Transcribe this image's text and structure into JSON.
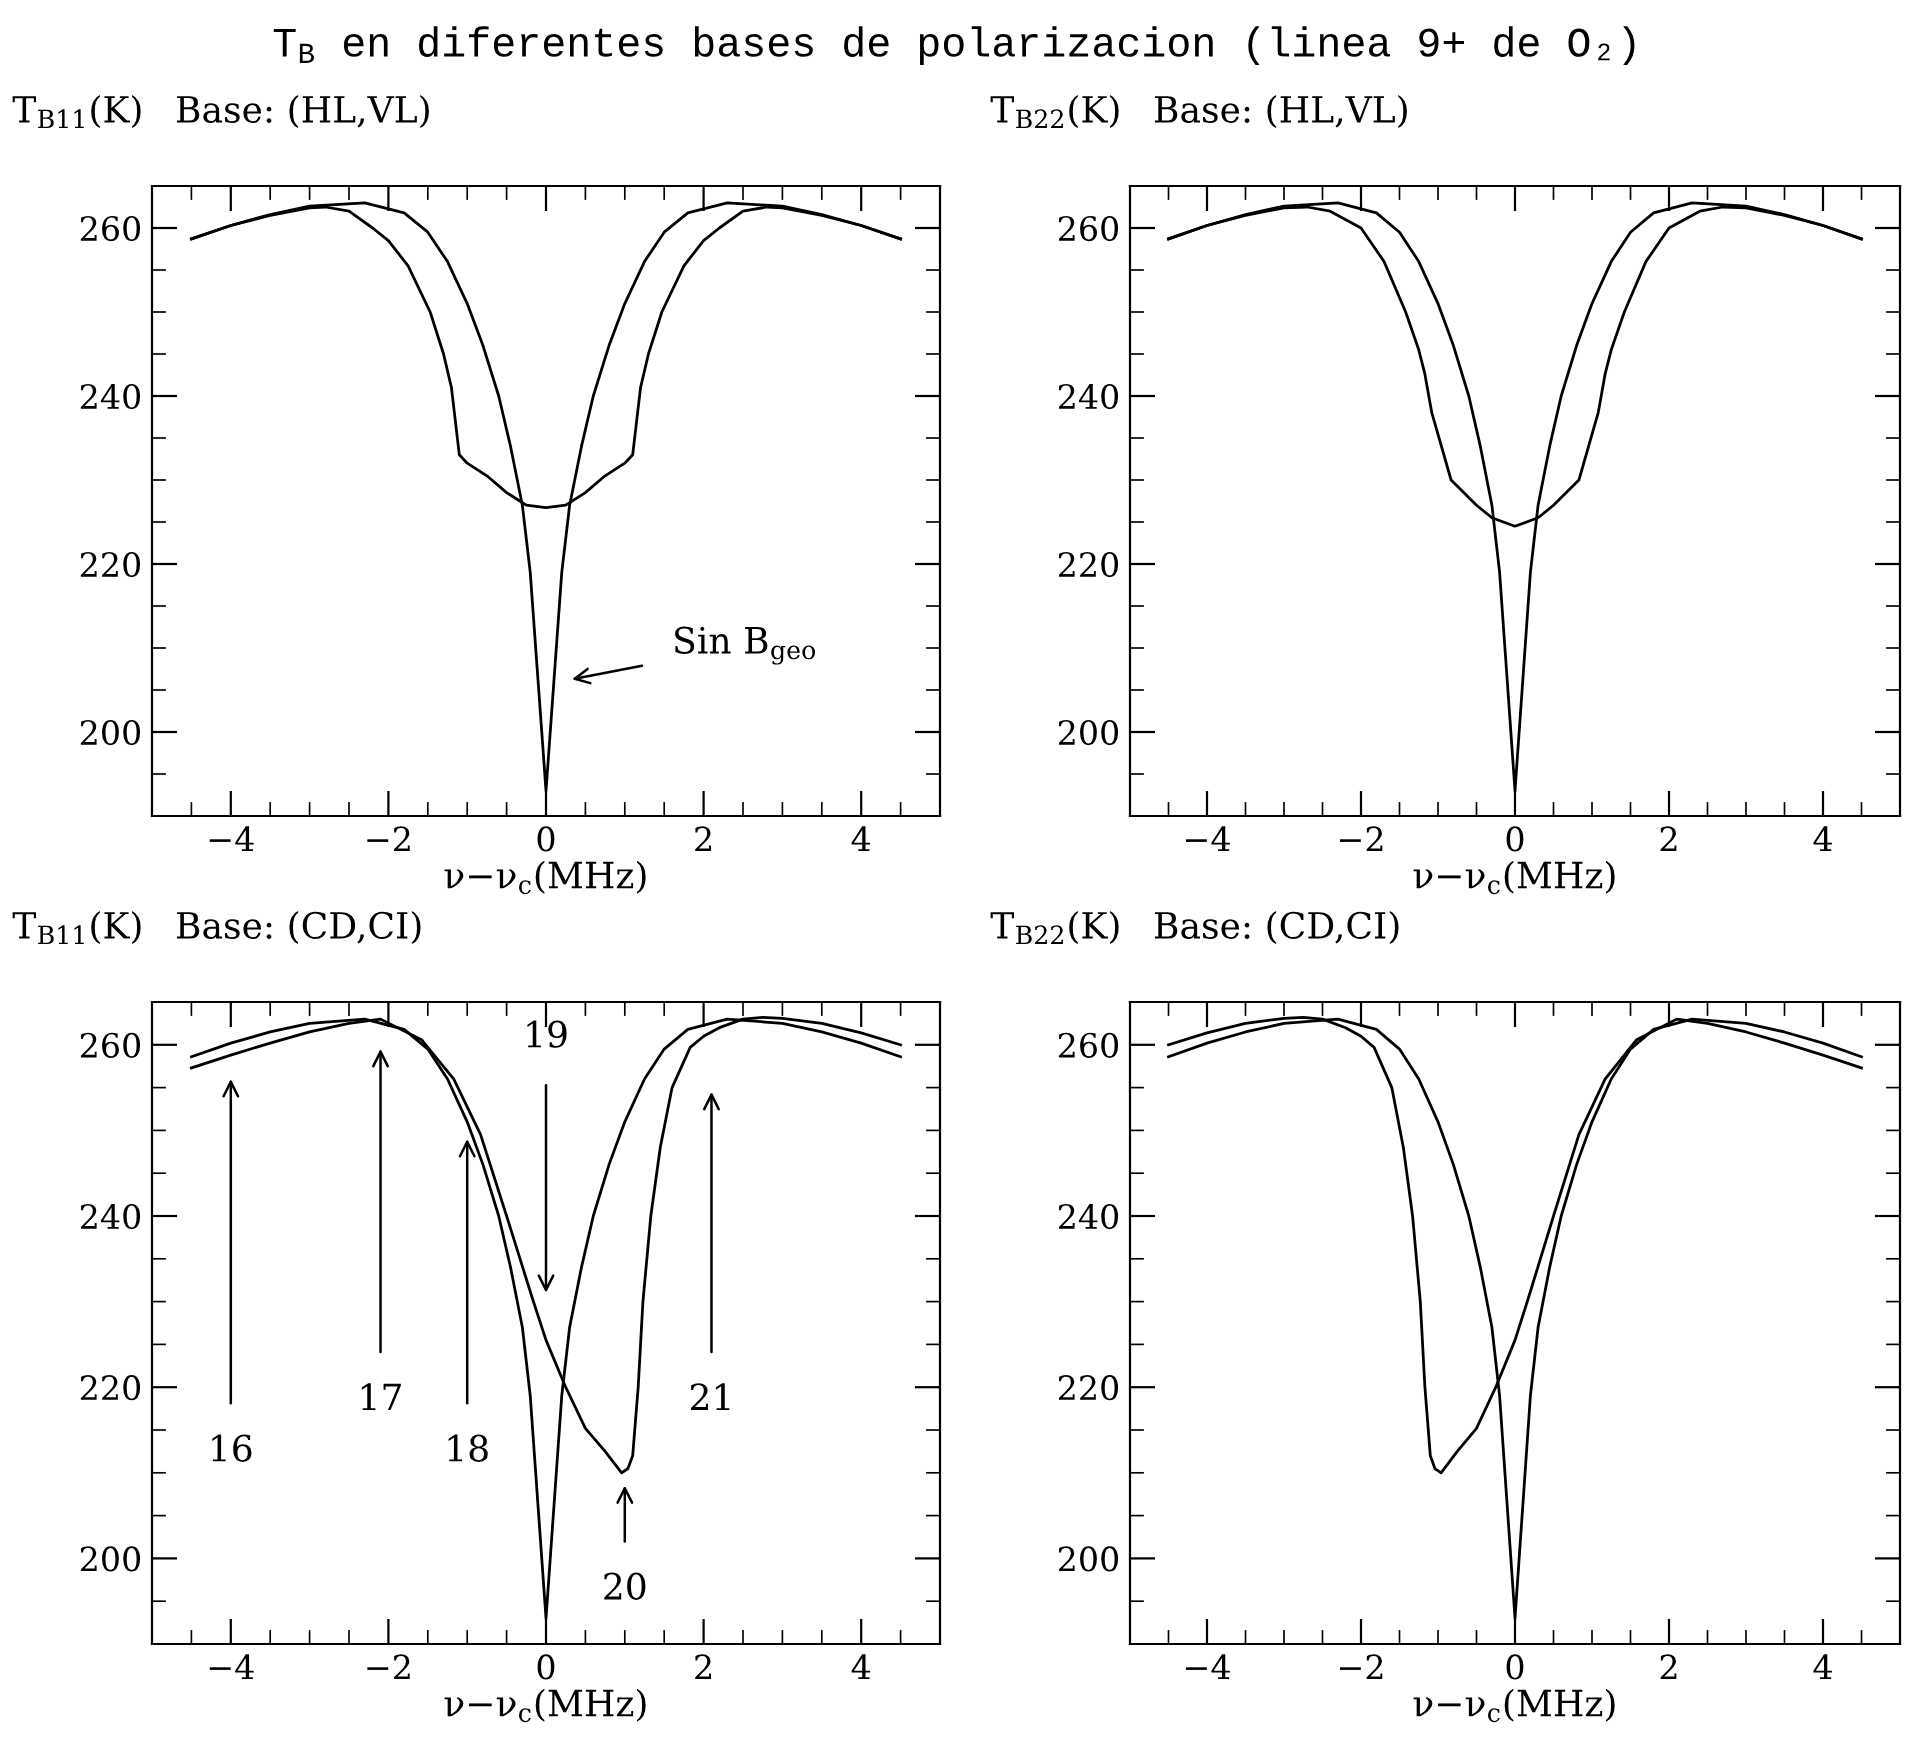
{
  "chart_data": [
    {
      "type": "line",
      "title": "T$_{B}$ en diferentes bases de polarizacion (linea 9+ de O₂)",
      "subtitle": "Base: (HL,VL)",
      "ylabel": "T$_{B11}$(K)",
      "xlabel": "ν−ν$_{c}$(MHz)",
      "xlim": [
        -5,
        5
      ],
      "ylim": [
        190,
        265
      ],
      "xticks": [
        {
          "value": -4.5,
          "label": null
        },
        {
          "value": -4,
          "label": "−4"
        },
        {
          "value": -3.5,
          "label": null
        },
        {
          "value": -3,
          "label": null
        },
        {
          "value": -2.5,
          "label": null
        },
        {
          "value": -2,
          "label": "−2"
        },
        {
          "value": -1.5,
          "label": null
        },
        {
          "value": -1,
          "label": null
        },
        {
          "value": -0.5,
          "label": null
        },
        0,
        {
          "value": 0.5,
          "label": null
        },
        {
          "value": 1,
          "label": null
        },
        {
          "value": 1.5,
          "label": null
        },
        2,
        {
          "value": 2.5,
          "label": null
        },
        {
          "value": 3,
          "label": null
        },
        {
          "value": 3.5,
          "label": null
        },
        4,
        {
          "value": 4.5,
          "label": null
        }
      ],
      "yticks": [
        {
          "value": 195,
          "label": null
        },
        200,
        {
          "value": 205,
          "label": null
        },
        {
          "value": 210,
          "label": null
        },
        {
          "value": 215,
          "label": null
        },
        220,
        {
          "value": 225,
          "label": null
        },
        {
          "value": 230,
          "label": null
        },
        {
          "value": 235,
          "label": null
        },
        240,
        {
          "value": 245,
          "label": null
        },
        {
          "value": 250,
          "label": null
        },
        {
          "value": 255,
          "label": null
        },
        260,
        {
          "value": 265,
          "label": null
        }
      ],
      "annotations": [
        "Sin B$_{geo}$"
      ],
      "series": [
        {
          "color": "#000000",
          "x": [
            -4.5,
            -4,
            -3.5,
            -3,
            -2.3,
            -1.8,
            -1.5,
            -1.25,
            -1,
            -0.8,
            -0.6,
            -0.45,
            -0.3,
            -0.2,
            -0.1,
            0,
            0.1,
            0.2,
            0.3,
            0.45,
            0.6,
            0.8,
            1,
            1.25,
            1.5,
            1.8,
            2.3,
            3,
            3.5,
            4,
            4.5
          ],
          "values": [
            258.7,
            260.3,
            261.6,
            262.6,
            263,
            261.8,
            259.5,
            256,
            251,
            246,
            240,
            234,
            227,
            219,
            206,
            193,
            206,
            219,
            227,
            234,
            240,
            246,
            251,
            256,
            259.5,
            261.8,
            263,
            262.6,
            261.6,
            260.3,
            258.7
          ]
        },
        {
          "color": "#000000",
          "x": [
            -4.5,
            -4,
            -3.5,
            -3,
            -2.8,
            -2.5,
            -2.2,
            -2,
            -1.75,
            -1.47,
            -1.3,
            -1.2,
            -1.15,
            -1.1,
            -1,
            -0.75,
            -0.5,
            -0.25,
            0,
            0.25,
            0.5,
            0.75,
            1,
            1.1,
            1.15,
            1.2,
            1.3,
            1.47,
            1.75,
            2,
            2.2,
            2.5,
            2.8,
            3,
            3.5,
            4,
            4.5
          ],
          "values": [
            258.7,
            260.3,
            261.5,
            262.4,
            262.5,
            262,
            260,
            258.5,
            255.5,
            250,
            245,
            241,
            237,
            233,
            232,
            230.5,
            228.5,
            227,
            226.7,
            227,
            228.5,
            230.5,
            232,
            233,
            237,
            241,
            245,
            250,
            255.5,
            258.5,
            260,
            262,
            262.5,
            262.4,
            261.5,
            260.3,
            258.7
          ]
        }
      ]
    },
    {
      "type": "line",
      "subtitle": "Base: (HL,VL)",
      "ylabel": "T$_{B22}$(K)",
      "xlabel": "ν−ν$_{c}$(MHz)",
      "xlim": [
        -5,
        5
      ],
      "ylim": [
        190,
        265
      ],
      "xticks": [
        {
          "value": -4.5,
          "label": null
        },
        {
          "value": -4,
          "label": "−4"
        },
        {
          "value": -3.5,
          "label": null
        },
        {
          "value": -3,
          "label": null
        },
        {
          "value": -2.5,
          "label": null
        },
        {
          "value": -2,
          "label": "−2"
        },
        {
          "value": -1.5,
          "label": null
        },
        {
          "value": -1,
          "label": null
        },
        {
          "value": -0.5,
          "label": null
        },
        0,
        {
          "value": 0.5,
          "label": null
        },
        {
          "value": 1,
          "label": null
        },
        {
          "value": 1.5,
          "label": null
        },
        2,
        {
          "value": 2.5,
          "label": null
        },
        {
          "value": 3,
          "label": null
        },
        {
          "value": 3.5,
          "label": null
        },
        4,
        {
          "value": 4.5,
          "label": null
        }
      ],
      "yticks": [
        {
          "value": 195,
          "label": null
        },
        200,
        {
          "value": 205,
          "label": null
        },
        {
          "value": 210,
          "label": null
        },
        {
          "value": 215,
          "label": null
        },
        220,
        {
          "value": 225,
          "label": null
        },
        {
          "value": 230,
          "label": null
        },
        {
          "value": 235,
          "label": null
        },
        240,
        {
          "value": 245,
          "label": null
        },
        {
          "value": 250,
          "label": null
        },
        {
          "value": 255,
          "label": null
        },
        260,
        {
          "value": 265,
          "label": null
        }
      ],
      "series": [
        {
          "color": "#000000",
          "x": [
            -4.5,
            -4,
            -3.5,
            -3,
            -2.3,
            -1.8,
            -1.5,
            -1.25,
            -1,
            -0.8,
            -0.6,
            -0.45,
            -0.3,
            -0.2,
            -0.1,
            0,
            0.1,
            0.2,
            0.3,
            0.45,
            0.6,
            0.8,
            1,
            1.25,
            1.5,
            1.8,
            2.3,
            3,
            3.5,
            4,
            4.5
          ],
          "values": [
            258.7,
            260.3,
            261.6,
            262.6,
            263,
            261.8,
            259.5,
            256,
            251,
            246,
            240,
            234,
            227,
            219,
            206,
            193,
            206,
            219,
            227,
            234,
            240,
            246,
            251,
            256,
            259.5,
            261.8,
            263,
            262.6,
            261.6,
            260.3,
            258.7
          ]
        },
        {
          "color": "#000000",
          "x": [
            -4.5,
            -4,
            -3.5,
            -3,
            -2.7,
            -2.4,
            -2,
            -1.7,
            -1.42,
            -1.25,
            -1.17,
            -1.1,
            -1.08,
            -0.83,
            -0.5,
            -0.3,
            0,
            0.3,
            0.5,
            0.83,
            1.08,
            1.1,
            1.17,
            1.25,
            1.42,
            1.7,
            2,
            2.4,
            2.7,
            3,
            3.5,
            4,
            4.5
          ],
          "values": [
            258.7,
            260.3,
            261.5,
            262.4,
            262.5,
            262,
            260,
            256,
            250,
            245.5,
            242.6,
            239,
            238,
            230,
            227,
            225.5,
            224.5,
            225.5,
            227,
            230,
            238,
            239,
            242.6,
            245.5,
            250,
            256,
            260,
            262,
            262.5,
            262.4,
            261.5,
            260.3,
            258.7
          ]
        }
      ]
    },
    {
      "type": "line",
      "subtitle": "Base: (CD,CI)",
      "ylabel": "T$_{B11}$(K)",
      "xlabel": "ν−ν$_{c}$(MHz)",
      "xlim": [
        -5,
        5
      ],
      "ylim": [
        190,
        265
      ],
      "xticks": [
        {
          "value": -4.5,
          "label": null
        },
        {
          "value": -4,
          "label": "−4"
        },
        {
          "value": -3.5,
          "label": null
        },
        {
          "value": -3,
          "label": null
        },
        {
          "value": -2.5,
          "label": null
        },
        {
          "value": -2,
          "label": "−2"
        },
        {
          "value": -1.5,
          "label": null
        },
        {
          "value": -1,
          "label": null
        },
        {
          "value": -0.5,
          "label": null
        },
        0,
        {
          "value": 0.5,
          "label": null
        },
        {
          "value": 1,
          "label": null
        },
        {
          "value": 1.5,
          "label": null
        },
        2,
        {
          "value": 2.5,
          "label": null
        },
        {
          "value": 3,
          "label": null
        },
        {
          "value": 3.5,
          "label": null
        },
        4,
        {
          "value": 4.5,
          "label": null
        }
      ],
      "yticks": [
        {
          "value": 195,
          "label": null
        },
        200,
        {
          "value": 205,
          "label": null
        },
        {
          "value": 210,
          "label": null
        },
        {
          "value": 215,
          "label": null
        },
        220,
        {
          "value": 225,
          "label": null
        },
        {
          "value": 230,
          "label": null
        },
        {
          "value": 235,
          "label": null
        },
        240,
        {
          "value": 245,
          "label": null
        },
        {
          "value": 250,
          "label": null
        },
        {
          "value": 255,
          "label": null
        },
        260,
        {
          "value": 265,
          "label": null
        }
      ],
      "annotations": [
        "16",
        "17",
        {
          "text": "18",
          "x": -1,
          "y": 249
        },
        "19",
        "20",
        "21"
      ],
      "series": [
        {
          "color": "#000000",
          "x": [
            -4.5,
            -4,
            -3.5,
            -3,
            -2.3,
            -1.8,
            -1.5,
            -1.25,
            -1,
            -0.8,
            -0.6,
            -0.45,
            -0.3,
            -0.2,
            -0.1,
            0,
            0.1,
            0.2,
            0.3,
            0.45,
            0.6,
            0.8,
            1,
            1.25,
            1.5,
            1.8,
            2.3,
            3,
            3.5,
            4,
            4.5
          ],
          "values": [
            258.6,
            260.2,
            261.5,
            262.5,
            263,
            261.8,
            259.5,
            256,
            251,
            246,
            240,
            234,
            227,
            219,
            206,
            193,
            206,
            219,
            227,
            234,
            240,
            246,
            251,
            256,
            259.5,
            261.8,
            263,
            262.5,
            261.5,
            260.2,
            258.6
          ]
        },
        {
          "color": "#000000",
          "x": [
            -4.5,
            -4,
            -3.5,
            -3,
            -2.5,
            -2.1,
            -1.58,
            -1.17,
            -0.83,
            -0.5,
            -0.17,
            0,
            0.25,
            0.5,
            0.75,
            0.96,
            1.04,
            1.1,
            1.17,
            1.23,
            1.33,
            1.45,
            1.6,
            1.83,
            2,
            2.2,
            2.5,
            2.75,
            3,
            3.5,
            4,
            4.5
          ],
          "values": [
            257.3,
            258.8,
            260.2,
            261.5,
            262.5,
            263,
            260.6,
            256,
            249.5,
            240,
            230.3,
            225.5,
            220,
            215.2,
            212.5,
            210,
            210.5,
            212,
            220,
            230,
            240,
            248,
            255,
            259.7,
            261,
            262,
            263,
            263.2,
            263.1,
            262.5,
            261.4,
            260
          ]
        }
      ]
    },
    {
      "type": "line",
      "subtitle": "Base: (CD,CI)",
      "ylabel": "T$_{B22}$(K)",
      "xlabel": "ν−ν$_{c}$(MHz)",
      "xlim": [
        -5,
        5
      ],
      "ylim": [
        190,
        265
      ],
      "xticks": [
        {
          "value": -4.5,
          "label": null
        },
        {
          "value": -4,
          "label": "−4"
        },
        {
          "value": -3.5,
          "label": null
        },
        {
          "value": -3,
          "label": null
        },
        {
          "value": -2.5,
          "label": null
        },
        {
          "value": -2,
          "label": "−2"
        },
        {
          "value": -1.5,
          "label": null
        },
        {
          "value": -1,
          "label": null
        },
        {
          "value": -0.5,
          "label": null
        },
        0,
        {
          "value": 0.5,
          "label": null
        },
        {
          "value": 1,
          "label": null
        },
        {
          "value": 1.5,
          "label": null
        },
        2,
        {
          "value": 2.5,
          "label": null
        },
        {
          "value": 3,
          "label": null
        },
        {
          "value": 3.5,
          "label": null
        },
        4,
        {
          "value": 4.5,
          "label": null
        }
      ],
      "yticks": [
        {
          "value": 195,
          "label": null
        },
        200,
        {
          "value": 205,
          "label": null
        },
        {
          "value": 210,
          "label": null
        },
        {
          "value": 215,
          "label": null
        },
        220,
        {
          "value": 225,
          "label": null
        },
        {
          "value": 230,
          "label": null
        },
        {
          "value": 235,
          "label": null
        },
        240,
        {
          "value": 245,
          "label": null
        },
        {
          "value": 250,
          "label": null
        },
        {
          "value": 255,
          "label": null
        },
        260,
        {
          "value": 265,
          "label": null
        }
      ],
      "series": [
        {
          "color": "#000000",
          "x": [
            -4.5,
            -4,
            -3.5,
            -3,
            -2.3,
            -1.8,
            -1.5,
            -1.25,
            -1,
            -0.8,
            -0.6,
            -0.45,
            -0.3,
            -0.2,
            -0.1,
            0,
            0.1,
            0.2,
            0.3,
            0.45,
            0.6,
            0.8,
            1,
            1.25,
            1.5,
            1.8,
            2.3,
            3,
            3.5,
            4,
            4.5
          ],
          "values": [
            258.6,
            260.2,
            261.5,
            262.5,
            263,
            261.8,
            259.5,
            256,
            251,
            246,
            240,
            234,
            227,
            219,
            206,
            193,
            206,
            219,
            227,
            234,
            240,
            246,
            251,
            256,
            259.5,
            261.8,
            263,
            262.5,
            261.5,
            260.2,
            258.6
          ]
        },
        {
          "color": "#000000",
          "x": [
            -4.5,
            -4,
            -3.5,
            -3,
            -2.75,
            -2.5,
            -2.2,
            -2,
            -1.83,
            -1.6,
            -1.45,
            -1.33,
            -1.23,
            -1.17,
            -1.1,
            -1.04,
            -0.96,
            -0.75,
            -0.5,
            -0.25,
            0,
            0.17,
            0.5,
            0.83,
            1.17,
            1.58,
            2.1,
            2.5,
            3,
            3.5,
            4,
            4.5
          ],
          "values": [
            260,
            261.4,
            262.5,
            263.1,
            263.2,
            263,
            262,
            261,
            259.7,
            255,
            248,
            240,
            230,
            220,
            212,
            210.5,
            210,
            212.5,
            215.2,
            220,
            225.5,
            230.3,
            240,
            249.5,
            256,
            260.6,
            263,
            262.5,
            261.5,
            260.2,
            258.8,
            257.3
          ]
        }
      ]
    }
  ]
}
